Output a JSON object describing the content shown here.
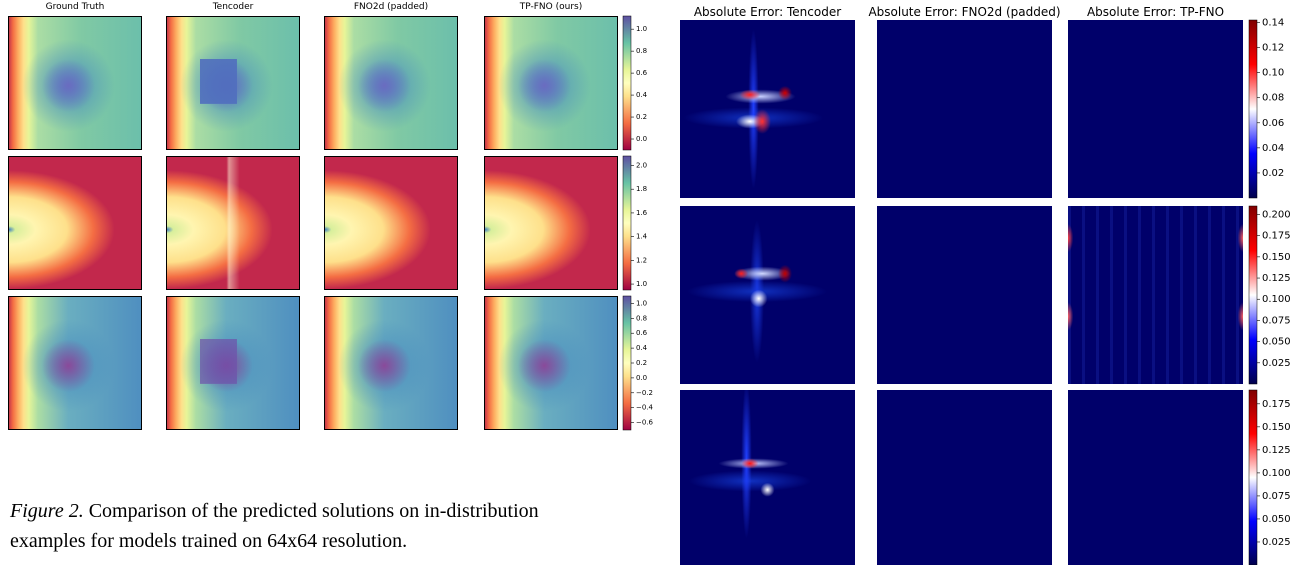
{
  "left_figure": {
    "column_titles": [
      "Ground Truth",
      "Tencoder",
      "FNO2d (padded)",
      "TP-FNO (ours)"
    ],
    "colorbars": [
      {
        "range": [
          -0.1,
          1.12
        ],
        "ticks": [
          {
            "value": 0,
            "label": "0.0"
          },
          {
            "value": 0.2,
            "label": "0.2"
          },
          {
            "value": 0.4,
            "label": "0.4"
          },
          {
            "value": 0.6,
            "label": "0.6"
          },
          {
            "value": 0.8,
            "label": "0.8"
          },
          {
            "value": 1,
            "label": "1.0"
          }
        ]
      },
      {
        "range": [
          0.95,
          2.08
        ],
        "ticks": [
          {
            "value": 1,
            "label": "1.0"
          },
          {
            "value": 1.2,
            "label": "1.2"
          },
          {
            "value": 1.4,
            "label": "1.4"
          },
          {
            "value": 1.6,
            "label": "1.6"
          },
          {
            "value": 1.8,
            "label": "1.8"
          },
          {
            "value": 2,
            "label": "2.0"
          }
        ]
      },
      {
        "range": [
          -0.7,
          1.1
        ],
        "ticks": [
          {
            "value": -0.6,
            "label": "−0.6"
          },
          {
            "value": -0.4,
            "label": "−0.4"
          },
          {
            "value": -0.2,
            "label": "−0.2"
          },
          {
            "value": 0,
            "label": "0.0"
          },
          {
            "value": 0.2,
            "label": "0.2"
          },
          {
            "value": 0.4,
            "label": "0.4"
          },
          {
            "value": 0.6,
            "label": "0.6"
          },
          {
            "value": 0.8,
            "label": "0.8"
          },
          {
            "value": 1,
            "label": "1.0"
          }
        ]
      }
    ]
  },
  "right_figure": {
    "column_titles": [
      "Absolute Error: Tencoder",
      "Absolute Error: FNO2d (padded)",
      "Absolute Error: TP-FNO"
    ],
    "colorbars": [
      {
        "range": [
          0,
          0.142
        ],
        "ticks": [
          0.02,
          0.04,
          0.06,
          0.08,
          {
            "value": 0.1,
            "label": "0.10"
          },
          0.12,
          0.14
        ]
      },
      {
        "range": [
          0,
          0.21
        ],
        "ticks": [
          0.025,
          {
            "value": 0.05,
            "label": "0.050"
          },
          0.075,
          {
            "value": 0.1,
            "label": "0.100"
          },
          0.125,
          {
            "value": 0.15,
            "label": "0.150"
          },
          0.175,
          {
            "value": 0.2,
            "label": "0.200"
          }
        ]
      },
      {
        "range": [
          0,
          0.19
        ],
        "ticks": [
          0.025,
          {
            "value": 0.05,
            "label": "0.050"
          },
          0.075,
          {
            "value": 0.1,
            "label": "0.100"
          },
          0.125,
          {
            "value": 0.15,
            "label": "0.150"
          },
          0.175
        ]
      }
    ]
  },
  "caption": {
    "label": "Figure 2.",
    "lines": [
      " Comparison of the predicted solutions on in-distribution",
      "examples for models trained on 64x64 resolution."
    ]
  }
}
